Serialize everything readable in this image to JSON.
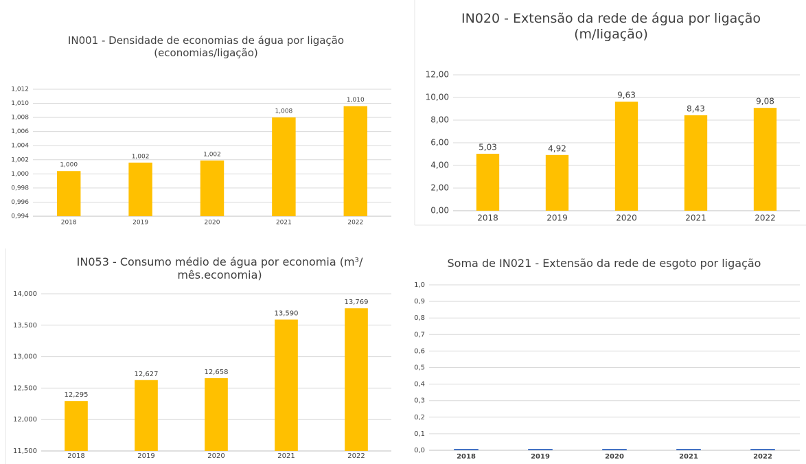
{
  "chart_data": [
    {
      "type": "bar",
      "title": "IN001 - Densidade de economias de água por ligação (economias/ligação)",
      "categories": [
        "2018",
        "2019",
        "2020",
        "2021",
        "2022"
      ],
      "values": [
        1.0004,
        1.0016,
        1.0019,
        1.008,
        1.0096
      ],
      "value_labels": [
        "1,000",
        "1,002",
        "1,002",
        "1,008",
        "1,010"
      ],
      "color": "#ffc000",
      "ylim": [
        0.994,
        1.012
      ],
      "yticks": [
        {
          "value": 0.994,
          "label": "0,994"
        },
        {
          "value": 0.996,
          "label": "0,996"
        },
        {
          "value": 0.998,
          "label": "0,998"
        },
        {
          "value": 1.0,
          "label": "1,000"
        },
        {
          "value": 1.002,
          "label": "1,002"
        },
        {
          "value": 1.004,
          "label": "1,004"
        },
        {
          "value": 1.006,
          "label": "1,006"
        },
        {
          "value": 1.008,
          "label": "1,008"
        },
        {
          "value": 1.01,
          "label": "1,010"
        },
        {
          "value": 1.012,
          "label": "1,012"
        }
      ],
      "grid": true
    },
    {
      "type": "bar",
      "title": "IN020 - Extensão da rede de água por ligação (m/ligação)",
      "categories": [
        "2018",
        "2019",
        "2020",
        "2021",
        "2022"
      ],
      "values": [
        5.03,
        4.92,
        9.63,
        8.43,
        9.08
      ],
      "value_labels": [
        "5,03",
        "4,92",
        "9,63",
        "8,43",
        "9,08"
      ],
      "color": "#ffc000",
      "ylim": [
        0,
        12
      ],
      "yticks": [
        {
          "value": 0,
          "label": "0,00"
        },
        {
          "value": 2,
          "label": "2,00"
        },
        {
          "value": 4,
          "label": "4,00"
        },
        {
          "value": 6,
          "label": "6,00"
        },
        {
          "value": 8,
          "label": "8,00"
        },
        {
          "value": 10,
          "label": "10,00"
        },
        {
          "value": 12,
          "label": "12,00"
        }
      ],
      "grid": true
    },
    {
      "type": "bar",
      "title": "IN053 - Consumo médio de água por economia (m³/ mês.economia)",
      "categories": [
        "2018",
        "2019",
        "2020",
        "2021",
        "2022"
      ],
      "values": [
        12.295,
        12.627,
        12.658,
        13.59,
        13.769
      ],
      "value_labels": [
        "12,295",
        "12,627",
        "12,658",
        "13,590",
        "13,769"
      ],
      "color": "#ffc000",
      "ylim": [
        11.5,
        14.0
      ],
      "yticks": [
        {
          "value": 11.5,
          "label": "11,500"
        },
        {
          "value": 12.0,
          "label": "12,000"
        },
        {
          "value": 12.5,
          "label": "12,500"
        },
        {
          "value": 13.0,
          "label": "13,000"
        },
        {
          "value": 13.5,
          "label": "13,500"
        },
        {
          "value": 14.0,
          "label": "14,000"
        }
      ],
      "grid": true
    },
    {
      "type": "bar",
      "title": "Soma de IN021 - Extensão da rede de esgoto por ligação",
      "categories": [
        "2018",
        "2019",
        "2020",
        "2021",
        "2022"
      ],
      "values": [
        0,
        0,
        0,
        0,
        0
      ],
      "color": "#4472c4",
      "ylim": [
        0,
        1
      ],
      "yticks": [
        {
          "value": 0,
          "label": "0,0"
        },
        {
          "value": 0.1,
          "label": "0,1"
        },
        {
          "value": 0.2,
          "label": "0,2"
        },
        {
          "value": 0.3,
          "label": "0,3"
        },
        {
          "value": 0.4,
          "label": "0,4"
        },
        {
          "value": 0.5,
          "label": "0,5"
        },
        {
          "value": 0.6,
          "label": "0,6"
        },
        {
          "value": 0.7,
          "label": "0,7"
        },
        {
          "value": 0.8,
          "label": "0,8"
        },
        {
          "value": 0.9,
          "label": "0,9"
        },
        {
          "value": 1.0,
          "label": "1,0"
        }
      ],
      "grid": true
    }
  ]
}
